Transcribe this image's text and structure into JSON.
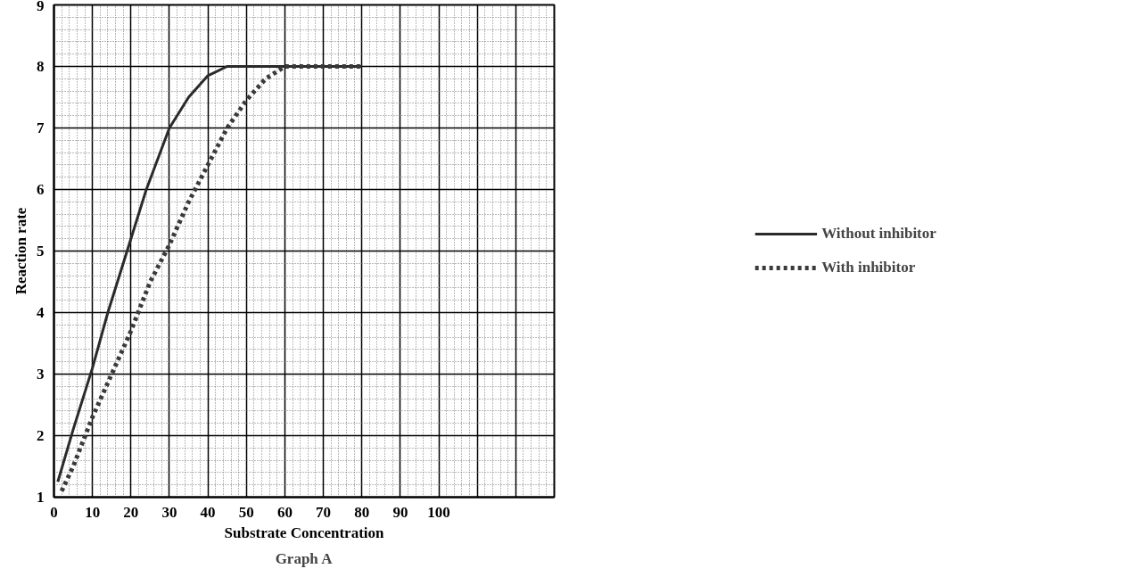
{
  "chart_data": {
    "type": "line",
    "title": "Graph A",
    "xlabel": "Substrate Concentration",
    "ylabel": "Reaction rate",
    "xlim": [
      0,
      130
    ],
    "ylim": [
      1,
      9
    ],
    "xticks": [
      0,
      10,
      20,
      30,
      40,
      50,
      60,
      70,
      80,
      90,
      100,
      {
        "value": 110,
        "label": null
      },
      {
        "value": 120,
        "label": null
      },
      {
        "value": 130,
        "label": null
      }
    ],
    "yticks": [
      1,
      2,
      3,
      4,
      5,
      6,
      7,
      8,
      9
    ],
    "grid": true,
    "legend": "right",
    "marker": "none",
    "series": [
      {
        "name": "Without inhibitor",
        "color": "#2a2a2a",
        "line_style": "solid",
        "x": [
          1,
          5,
          10,
          14,
          20,
          24,
          30,
          35,
          40,
          45,
          80
        ],
        "values": [
          1.25,
          2.1,
          3.1,
          4,
          5.2,
          6,
          7,
          7.5,
          7.85,
          8,
          8
        ]
      },
      {
        "name": "With inhibitor",
        "color": "#3a3a3a",
        "line_style": "dotted",
        "x": [
          2,
          5,
          10,
          15,
          20,
          25,
          30,
          35,
          40,
          45,
          50,
          55,
          60,
          80
        ],
        "values": [
          1.1,
          1.5,
          2.3,
          3,
          3.7,
          4.5,
          5.1,
          5.8,
          6.4,
          7,
          7.45,
          7.8,
          8,
          8
        ]
      }
    ]
  }
}
